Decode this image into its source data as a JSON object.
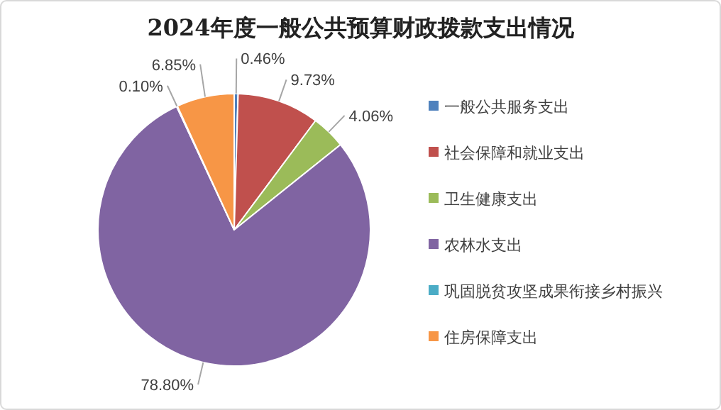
{
  "chart_data": {
    "type": "pie",
    "title": "2024年度一般公共预算财政拨款支出情况",
    "categories": [
      "一般公共服务支出",
      "社会保障和就业支出",
      "卫生健康支出",
      "农林水支出",
      "巩固脱贫攻坚成果衔接乡村振兴",
      "住房保障支出"
    ],
    "values": [
      0.46,
      9.73,
      4.06,
      78.8,
      0.1,
      6.85
    ],
    "value_labels": [
      "0.46%",
      "9.73%",
      "4.06%",
      "78.80%",
      "0.10%",
      "6.85%"
    ],
    "colors": [
      "#4f81bd",
      "#c0504d",
      "#9bbb59",
      "#8064a2",
      "#4bacc6",
      "#f79646"
    ],
    "legend": "right"
  }
}
